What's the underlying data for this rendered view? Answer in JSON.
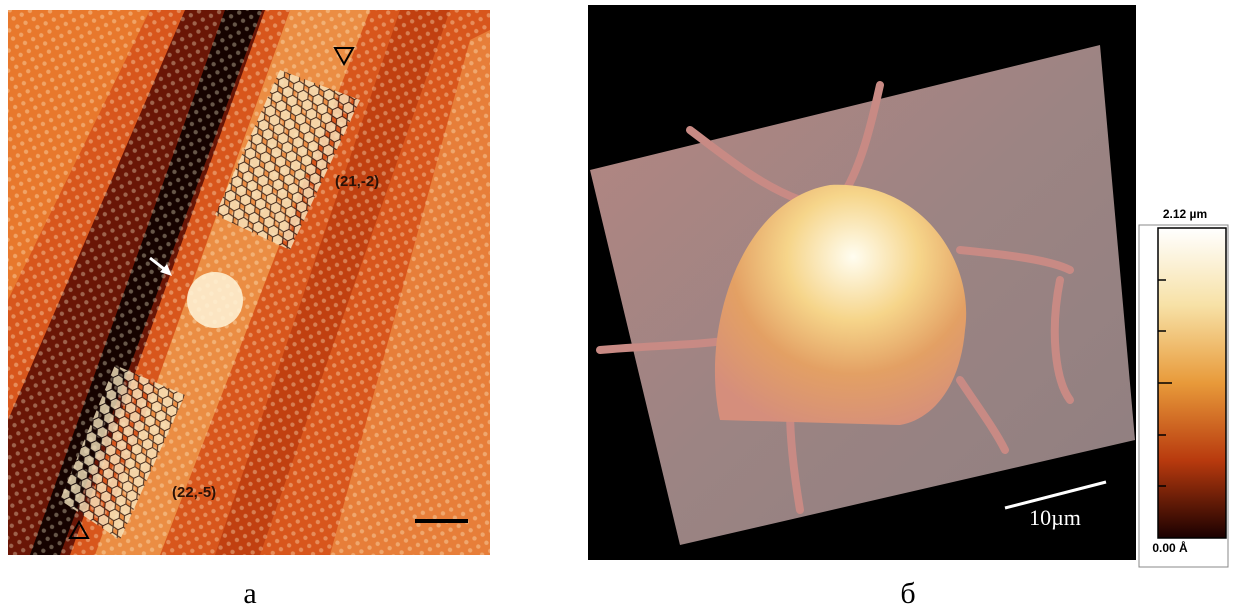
{
  "panels": [
    {
      "caption": "а",
      "annotations": [
        "(21,-2)",
        "(22,-5)"
      ]
    },
    {
      "caption": "б",
      "scale_bar": "10µm",
      "colorbar": {
        "max_label": "2.12 µm",
        "min_label": "0.00 Å"
      }
    }
  ]
}
